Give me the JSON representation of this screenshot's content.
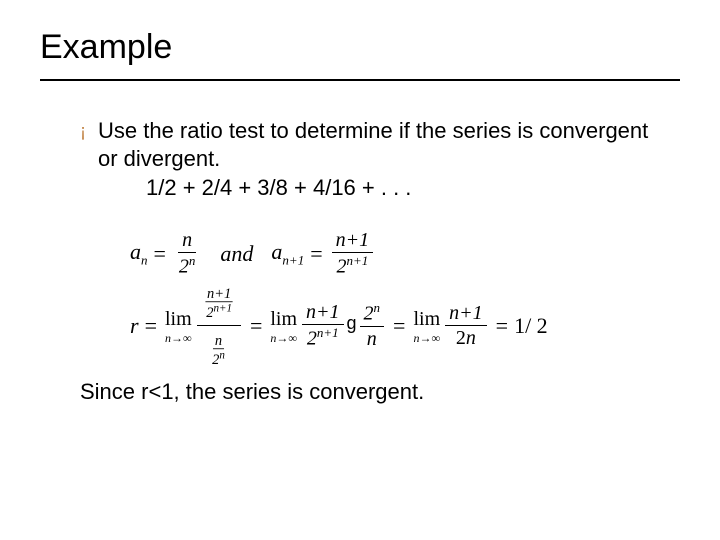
{
  "heading": "Example",
  "bullet_glyph": "¡",
  "bullet_color": "#c08040",
  "bullet_text_line1": "Use the ratio test to determine if the series is convergent or divergent.",
  "series_expr": "1/2 + 2/4 + 3/8 + 4/16 + . . .",
  "formula1": {
    "an_label": "a",
    "an_sub": "n",
    "an_num": "n",
    "an_den_base": "2",
    "an_den_exp": "n",
    "and_word": "and",
    "an1_label": "a",
    "an1_sub": "n+1",
    "an1_num": "n+1",
    "an1_den_base": "2",
    "an1_den_exp": "n+1"
  },
  "formula2": {
    "r_var": "r",
    "lim_label": "lim",
    "lim_sub": "n→∞",
    "step1_top_left": "n+1",
    "step1_top_right_base": "2",
    "step1_top_right_exp": "n+1",
    "step1_bot_left": "n",
    "step1_bot_right_base": "2",
    "step1_bot_right_exp": "n",
    "step2_num_a": "n+1",
    "step2_num_b_base": "2",
    "step2_num_b_exp": "n",
    "step2_den_a_base": "2",
    "step2_den_a_exp": "n+1",
    "step2_den_b": "n",
    "g_mark": "g",
    "step3_num": "n+1",
    "step3_den": "2n",
    "result": "1/ 2"
  },
  "conclusion": "Since r<1, the series is convergent."
}
